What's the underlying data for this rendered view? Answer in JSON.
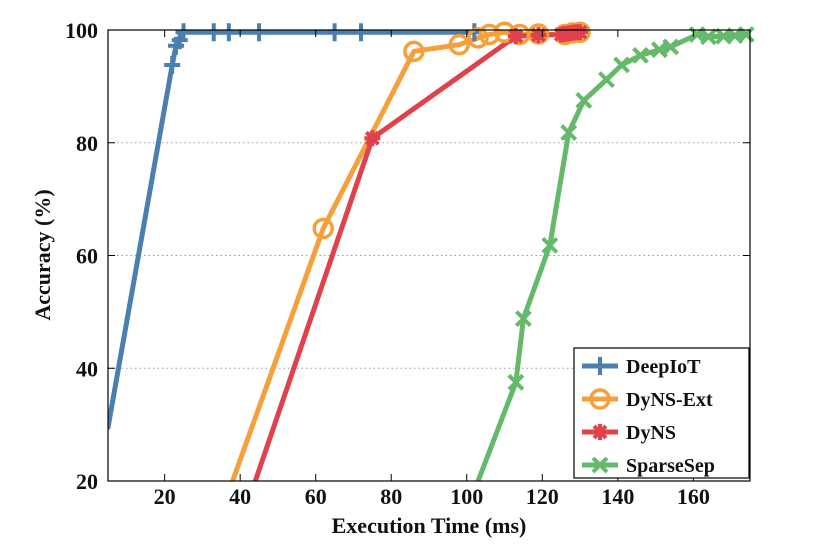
{
  "chart_data": {
    "type": "line",
    "title": "",
    "xlabel": "Execution Time (ms)",
    "ylabel": "Accuracy (%)",
    "xlim": [
      5,
      175
    ],
    "ylim": [
      20,
      100
    ],
    "xticks": [
      20,
      40,
      60,
      80,
      100,
      120,
      140,
      160
    ],
    "yticks": [
      20,
      40,
      60,
      80,
      100
    ],
    "grid": "horizontal dotted",
    "legend_position": "bottom-right",
    "series": [
      {
        "name": "DeepIoT",
        "color": "#4a7faf",
        "marker": "plus",
        "line": [
          [
            5,
            29.5
          ],
          [
            22,
            93.8
          ],
          [
            23,
            97.2
          ],
          [
            24,
            98.2
          ],
          [
            25,
            99.6
          ],
          [
            102,
            99.6
          ]
        ],
        "markers": [
          [
            22,
            93.8
          ],
          [
            23,
            97.2
          ],
          [
            24,
            98.2
          ],
          [
            25,
            99.6
          ],
          [
            33,
            99.6
          ],
          [
            37,
            99.6
          ],
          [
            45,
            99.6
          ],
          [
            65,
            99.6
          ],
          [
            72,
            99.6
          ],
          [
            102,
            99.6
          ]
        ]
      },
      {
        "name": "DyNS-Ext",
        "color": "#f5a03a",
        "marker": "circle",
        "line": [
          [
            38,
            20
          ],
          [
            62,
            64.8
          ],
          [
            86,
            96.2
          ],
          [
            98,
            97.4
          ],
          [
            103,
            98.6
          ],
          [
            106,
            99.2
          ],
          [
            110,
            99.6
          ],
          [
            114,
            99.2
          ],
          [
            119,
            99.3
          ],
          [
            126,
            99.2
          ],
          [
            128,
            99.5
          ],
          [
            130,
            99.6
          ]
        ],
        "markers": [
          [
            62,
            64.8
          ],
          [
            86,
            96.2
          ],
          [
            98,
            97.4
          ],
          [
            103,
            98.6
          ],
          [
            106,
            99.2
          ],
          [
            110,
            99.6
          ],
          [
            114,
            99.2
          ],
          [
            119,
            99.3
          ],
          [
            126,
            99.2
          ],
          [
            128,
            99.5
          ],
          [
            130,
            99.6
          ]
        ]
      },
      {
        "name": "DyNS",
        "color": "#e0414b",
        "marker": "star",
        "line": [
          [
            44,
            20
          ],
          [
            75,
            80.8
          ],
          [
            113,
            98.9
          ],
          [
            119,
            99.1
          ],
          [
            125,
            99.2
          ],
          [
            126,
            99.3
          ],
          [
            127,
            99.4
          ],
          [
            128,
            99.5
          ],
          [
            129,
            99.6
          ],
          [
            130,
            99.6
          ]
        ],
        "markers": [
          [
            75,
            80.8
          ],
          [
            113,
            98.9
          ],
          [
            119,
            99.1
          ],
          [
            125,
            99.2
          ],
          [
            126,
            99.3
          ],
          [
            127,
            99.4
          ],
          [
            128,
            99.5
          ],
          [
            129,
            99.6
          ],
          [
            130,
            99.6
          ]
        ]
      },
      {
        "name": "SparseSep",
        "color": "#65b96a",
        "marker": "x",
        "line": [
          [
            103,
            20
          ],
          [
            113,
            37.5
          ],
          [
            115,
            48.8
          ],
          [
            122,
            61.8
          ],
          [
            127,
            81.8
          ],
          [
            131,
            87.5
          ],
          [
            137,
            91.2
          ],
          [
            141,
            93.8
          ],
          [
            146,
            95.5
          ],
          [
            151,
            96.5
          ],
          [
            154,
            97
          ],
          [
            161,
            99.2
          ],
          [
            164,
            98.8
          ],
          [
            168,
            98.9
          ],
          [
            171,
            99
          ],
          [
            174,
            99.2
          ]
        ],
        "markers": [
          [
            113,
            37.5
          ],
          [
            115,
            48.8
          ],
          [
            122,
            61.8
          ],
          [
            127,
            81.8
          ],
          [
            131,
            87.5
          ],
          [
            137,
            91.2
          ],
          [
            141,
            93.8
          ],
          [
            146,
            95.5
          ],
          [
            151,
            96.5
          ],
          [
            154,
            97
          ],
          [
            161,
            99.2
          ],
          [
            164,
            98.8
          ],
          [
            168,
            98.9
          ],
          [
            171,
            99
          ],
          [
            174,
            99.2
          ]
        ]
      }
    ]
  }
}
